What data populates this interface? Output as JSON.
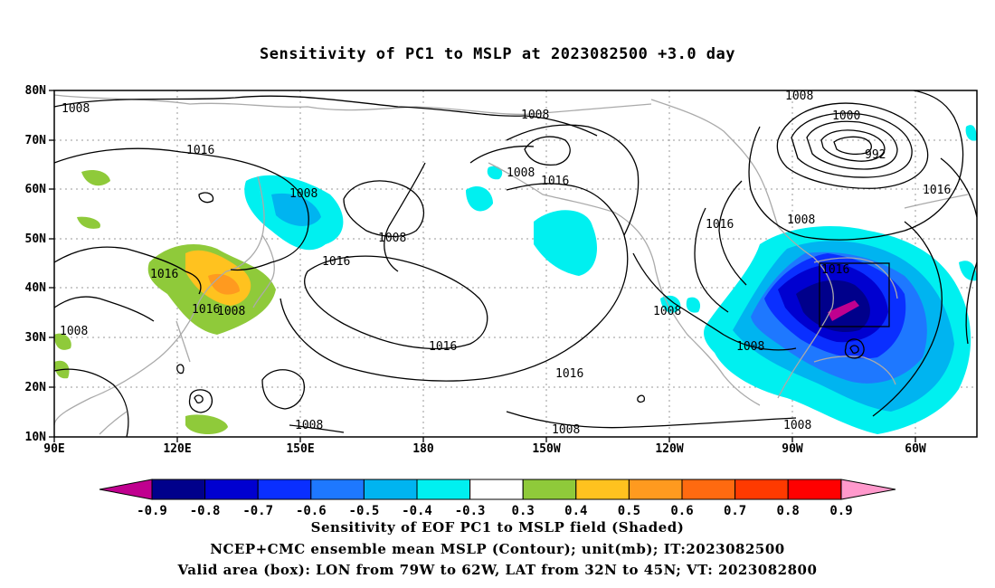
{
  "title": "Sensitivity of PC1 to MSLP at 2023082500 +3.0 day",
  "lat_labels": [
    "80N",
    "70N",
    "60N",
    "50N",
    "40N",
    "30N",
    "20N",
    "10N"
  ],
  "lon_labels": [
    "90E",
    "120E",
    "150E",
    "180",
    "150W",
    "120W",
    "90W",
    "60W"
  ],
  "contour_labels": [
    "1008",
    "1008",
    "1016",
    "1008",
    "1008",
    "1016",
    "1016",
    "1008",
    "1008",
    "1000",
    "992",
    "1016",
    "1016",
    "1008",
    "1016",
    "1008",
    "1016",
    "1016",
    "1016",
    "1008",
    "1008",
    "1016",
    "1008",
    "1008",
    "1008",
    "1008"
  ],
  "colorbar": {
    "labels": [
      "-0.9",
      "-0.8",
      "-0.7",
      "-0.6",
      "-0.5",
      "-0.4",
      "-0.3",
      "0.3",
      "0.4",
      "0.5",
      "0.6",
      "0.7",
      "0.8",
      "0.9"
    ],
    "colors": [
      "#c0008f",
      "#00008b",
      "#0000d0",
      "#0a2fff",
      "#1e78ff",
      "#00b4f0",
      "#00f0f0",
      "#ffffff",
      "#8fca3a",
      "#ffc21f",
      "#ff9a1f",
      "#ff6a10",
      "#ff3a00",
      "#ff0000",
      "#ff99cc"
    ]
  },
  "captions": [
    "Sensitivity of EOF PC1 to MSLP field (Shaded)",
    "NCEP+CMC ensemble mean MSLP (Contour); unit(mb); IT:2023082500",
    "Valid area (box): LON from 79W to 62W, LAT from 32N to 45N; VT: 2023082800"
  ]
}
